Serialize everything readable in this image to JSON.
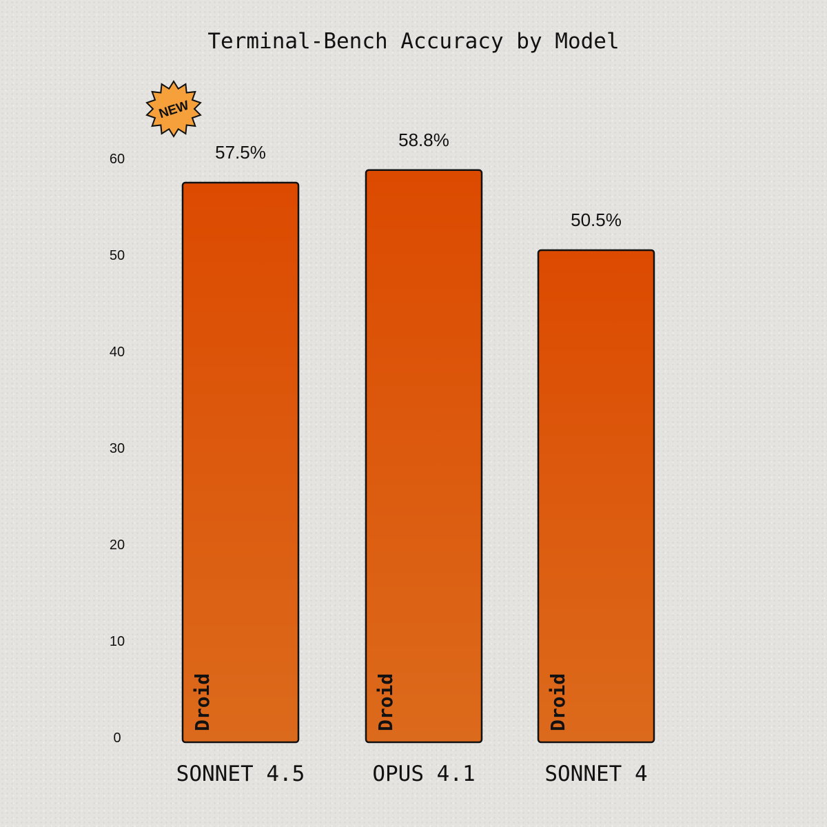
{
  "chart_data": {
    "type": "bar",
    "title": "Terminal-Bench Accuracy by Model",
    "xlabel": "",
    "ylabel": "",
    "categories": [
      "SONNET 4.5",
      "OPUS 4.1",
      "SONNET 4"
    ],
    "values": [
      57.5,
      58.8,
      50.5
    ],
    "value_labels": [
      "57.5%",
      "58.8%",
      "50.5%"
    ],
    "bar_inner_labels": [
      "Droid",
      "Droid",
      "Droid"
    ],
    "badge": {
      "text": "NEW",
      "category": "SONNET 4.5"
    },
    "ylim": [
      0,
      60
    ],
    "yticks": [
      0,
      10,
      20,
      30,
      40,
      50,
      60
    ],
    "grid": false,
    "legend": "none",
    "colors": {
      "bar_top": "#dc4a00",
      "bar_bottom": "#dc6a1c",
      "bar_stroke": "#111111",
      "badge_fill": "#f5a03a"
    }
  }
}
